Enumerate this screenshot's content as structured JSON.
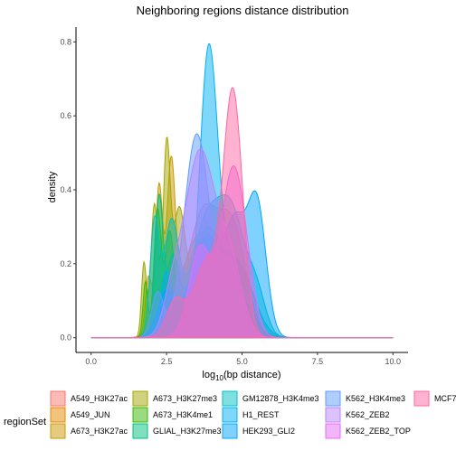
{
  "chart_data": {
    "type": "area",
    "title": "Neighboring regions distance distribution",
    "xlabel_prefix": "log",
    "xlabel_sub": "10",
    "xlabel_suffix": "(bp distance)",
    "ylabel": "density",
    "xlim": [
      -0.5,
      10.5
    ],
    "ylim": [
      -0.04,
      0.84
    ],
    "x_ticks": [
      0.0,
      2.5,
      5.0,
      7.5,
      10.0
    ],
    "x_tick_labels": [
      "0.0",
      "2.5",
      "5.0",
      "7.5",
      "10.0"
    ],
    "y_ticks": [
      0.0,
      0.2,
      0.4,
      0.6,
      0.8
    ],
    "y_tick_labels": [
      "0.0",
      "0.2",
      "0.4",
      "0.6",
      "0.8"
    ],
    "grid": false,
    "legend_position": "bottom",
    "legend_title": "regionSet",
    "series": [
      {
        "name": "A549_H3K27ac",
        "color": "#F8766D",
        "peaks": [
          [
            2.5,
            0.16,
            0.35
          ],
          [
            3.7,
            0.33,
            0.5
          ],
          [
            4.7,
            0.28,
            0.45
          ]
        ]
      },
      {
        "name": "A549_JUN",
        "color": "#E58700",
        "peaks": [
          [
            3.6,
            0.26,
            0.5
          ],
          [
            4.6,
            0.18,
            0.4
          ]
        ]
      },
      {
        "name": "A673_H3K27ac",
        "color": "#C99800",
        "peaks": [
          [
            1.9,
            0.16,
            0.1
          ],
          [
            2.25,
            0.4,
            0.12
          ],
          [
            2.65,
            0.43,
            0.14
          ],
          [
            3.5,
            0.25,
            0.5
          ],
          [
            4.5,
            0.2,
            0.5
          ]
        ]
      },
      {
        "name": "A673_H3K27me3",
        "color": "#A3A500",
        "peaks": [
          [
            1.75,
            0.2,
            0.08
          ],
          [
            2.1,
            0.36,
            0.12
          ],
          [
            2.5,
            0.49,
            0.12
          ],
          [
            2.9,
            0.3,
            0.2
          ],
          [
            3.8,
            0.26,
            0.5
          ],
          [
            4.8,
            0.16,
            0.45
          ]
        ]
      },
      {
        "name": "A673_H3K4me1",
        "color": "#39B600",
        "peaks": [
          [
            1.8,
            0.15,
            0.08
          ],
          [
            2.2,
            0.34,
            0.12
          ],
          [
            2.6,
            0.27,
            0.15
          ],
          [
            3.7,
            0.2,
            0.5
          ],
          [
            4.8,
            0.12,
            0.5
          ]
        ]
      },
      {
        "name": "GLIAL_H3K27me3",
        "color": "#00BF7D",
        "peaks": [
          [
            2.25,
            0.37,
            0.13
          ],
          [
            2.7,
            0.2,
            0.2
          ],
          [
            3.8,
            0.28,
            0.5
          ],
          [
            4.9,
            0.18,
            0.5
          ]
        ]
      },
      {
        "name": "GM12878_H3K4me3",
        "color": "#00BFC4",
        "peaks": [
          [
            2.1,
            0.3,
            0.15
          ],
          [
            2.65,
            0.3,
            0.25
          ],
          [
            3.8,
            0.3,
            0.5
          ],
          [
            4.7,
            0.3,
            0.45
          ],
          [
            5.5,
            0.1,
            0.3
          ]
        ]
      },
      {
        "name": "H1_REST",
        "color": "#00B0F6",
        "peaks": [
          [
            2.5,
            0.18,
            0.2
          ],
          [
            3.9,
            0.78,
            0.3
          ],
          [
            4.7,
            0.2,
            0.35
          ]
        ]
      },
      {
        "name": "HEK293_GLI2",
        "color": "#00A5FF",
        "peaks": [
          [
            2.5,
            0.12,
            0.3
          ],
          [
            3.8,
            0.27,
            0.5
          ],
          [
            4.8,
            0.28,
            0.35
          ],
          [
            5.5,
            0.35,
            0.3
          ]
        ]
      },
      {
        "name": "K562_H3K4me3",
        "color": "#619CFF",
        "peaks": [
          [
            2.2,
            0.12,
            0.2
          ],
          [
            3.5,
            0.55,
            0.42
          ],
          [
            4.6,
            0.2,
            0.35
          ]
        ]
      },
      {
        "name": "K562_ZEB2",
        "color": "#B983FF",
        "peaks": [
          [
            2.7,
            0.1,
            0.3
          ],
          [
            3.6,
            0.5,
            0.5
          ],
          [
            4.6,
            0.2,
            0.4
          ]
        ]
      },
      {
        "name": "K562_ZEB2_TOP",
        "color": "#E76BF3",
        "peaks": [
          [
            3.6,
            0.24,
            0.35
          ],
          [
            4.7,
            0.45,
            0.4
          ],
          [
            5.2,
            0.05,
            0.3
          ]
        ]
      },
      {
        "name": "MCF7",
        "color": "#FF67A4",
        "peaks": [
          [
            2.8,
            0.1,
            0.3
          ],
          [
            3.8,
            0.2,
            0.4
          ],
          [
            4.7,
            0.66,
            0.32
          ]
        ]
      }
    ]
  }
}
